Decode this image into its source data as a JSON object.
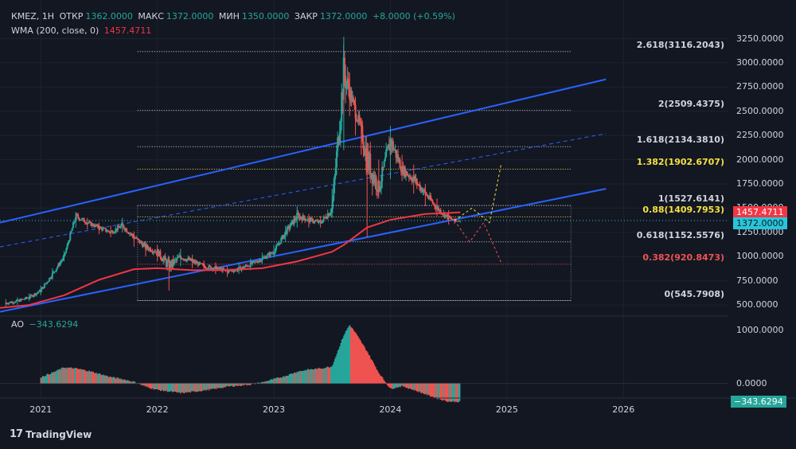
{
  "legend": {
    "symbol": "КМЕZ, 1Н",
    "open_label": "ОТКР",
    "open_value": "1362.0000",
    "high_label": "МАКС",
    "high_value": "1372.0000",
    "low_label": "МИН",
    "low_value": "1350.0000",
    "close_label": "ЗАКР",
    "close_value": "1372.0000",
    "change": "+8.0000 (+0.59%)",
    "wma_label": "WMA (200, close, 0)",
    "wma_value": "1457.4711",
    "ao_label": "AO",
    "ao_value": "−343.6294"
  },
  "colors": {
    "background": "#131722",
    "up": "#26a69a",
    "down": "#ef5350",
    "wma": "#f23645",
    "channel": "#2962ff",
    "fib_white": "#d1d4dc",
    "fib_yellow": "#f5e143",
    "fib_red": "#ef5350",
    "price_tag": "#26c6da",
    "wma_tag": "#f23645",
    "ao_tag": "#26a69a"
  },
  "price_axis": {
    "labels": [
      "3250.0000",
      "3000.0000",
      "2750.0000",
      "2500.0000",
      "2250.0000",
      "2000.0000",
      "1750.0000",
      "1500.0000",
      "1250.0000",
      "1000.0000",
      "750.0000",
      "500.0000"
    ],
    "values": [
      3250,
      3000,
      2750,
      2500,
      2250,
      2000,
      1750,
      1500,
      1250,
      1000,
      750,
      500
    ],
    "ylim": [
      460,
      3320
    ],
    "wma_tag": "1457.4711",
    "wma_tag_value": 1457.4711,
    "price_tag": "1372.0000",
    "price_tag_value": 1372
  },
  "fib_levels": [
    {
      "label": "2.618(3116.2043)",
      "value": 3116.2043,
      "color": "white"
    },
    {
      "label": "2(2509.4375)",
      "value": 2509.4375,
      "color": "white"
    },
    {
      "label": "1.618(2134.3810)",
      "value": 2134.381,
      "color": "white"
    },
    {
      "label": "1.382(1902.6707)",
      "value": 1902.6707,
      "color": "yellow"
    },
    {
      "label": "1(1527.6141)",
      "value": 1527.6141,
      "color": "white"
    },
    {
      "label": "0.88(1409.7953)",
      "value": 1409.7953,
      "color": "yellow"
    },
    {
      "label": "0.618(1152.5576)",
      "value": 1152.5576,
      "color": "white"
    },
    {
      "label": "0.382(920.8473)",
      "value": 920.8473,
      "color": "red"
    },
    {
      "label": "0(545.7908)",
      "value": 545.7908,
      "color": "white"
    }
  ],
  "ao_axis": {
    "labels": [
      "1000.0000",
      "0.0000"
    ],
    "values": [
      1000,
      0
    ],
    "ylim": [
      -200,
      1100
    ],
    "tag": "−343.6294",
    "tag_value": -343.6294
  },
  "time_axis": {
    "labels": [
      "2021",
      "2022",
      "2023",
      "2024",
      "2025",
      "2026"
    ],
    "values": [
      2021,
      2022,
      2023,
      2024,
      2025,
      2026
    ],
    "xlim": [
      2020.65,
      2026.9
    ]
  },
  "chart_data": {
    "type": "candlestick",
    "title": "",
    "xlabel": "",
    "ylabel": "",
    "x": [
      2020.7,
      2020.8,
      2020.9,
      2021.0,
      2021.1,
      2021.2,
      2021.3,
      2021.4,
      2021.5,
      2021.6,
      2021.7,
      2021.8,
      2021.9,
      2022.0,
      2022.1,
      2022.2,
      2022.3,
      2022.4,
      2022.5,
      2022.6,
      2022.7,
      2022.8,
      2022.9,
      2023.0,
      2023.1,
      2023.2,
      2023.3,
      2023.4,
      2023.5,
      2023.6,
      2023.65,
      2023.7,
      2023.75,
      2023.8,
      2023.9,
      2024.0,
      2024.1,
      2024.2,
      2024.3,
      2024.4,
      2024.5,
      2024.55,
      2024.6
    ],
    "close": [
      520,
      540,
      580,
      650,
      820,
      1000,
      1420,
      1350,
      1300,
      1250,
      1320,
      1200,
      1100,
      1050,
      900,
      1000,
      950,
      900,
      880,
      850,
      870,
      920,
      980,
      1050,
      1250,
      1420,
      1380,
      1350,
      1500,
      2900,
      2700,
      2500,
      2300,
      2000,
      1700,
      2200,
      1900,
      1800,
      1650,
      1500,
      1400,
      1370,
      1372
    ],
    "high": [
      560,
      580,
      620,
      700,
      880,
      1060,
      1460,
      1400,
      1350,
      1320,
      1400,
      1260,
      1160,
      1120,
      980,
      1080,
      1020,
      960,
      940,
      900,
      940,
      980,
      1040,
      1120,
      1320,
      1520,
      1440,
      1420,
      1700,
      3270,
      2900,
      2650,
      2420,
      2150,
      2000,
      2350,
      2050,
      1950,
      1750,
      1600,
      1480,
      1400,
      1372
    ],
    "low": [
      480,
      500,
      540,
      600,
      760,
      950,
      1300,
      1280,
      1230,
      1200,
      1250,
      1100,
      1000,
      950,
      650,
      900,
      880,
      850,
      820,
      790,
      820,
      860,
      920,
      990,
      1150,
      1300,
      1300,
      1300,
      1400,
      2100,
      2450,
      2250,
      2050,
      1200,
      1600,
      1800,
      1780,
      1650,
      1520,
      1420,
      1330,
      1340,
      1350
    ],
    "wma": {
      "name": "WMA (200, close, 0)",
      "x": [
        2020.65,
        2020.9,
        2021.2,
        2021.5,
        2021.8,
        2022.0,
        2022.3,
        2022.6,
        2022.9,
        2023.2,
        2023.5,
        2023.6,
        2023.8,
        2024.0,
        2024.3,
        2024.5,
        2024.6
      ],
      "values": [
        470,
        500,
        600,
        760,
        870,
        880,
        860,
        860,
        880,
        950,
        1050,
        1120,
        1300,
        1380,
        1440,
        1450,
        1457
      ]
    },
    "channel": {
      "upper": {
        "x": [
          2020.65,
          2025.85
        ],
        "values": [
          1350,
          2830
        ]
      },
      "middle": {
        "x": [
          2020.65,
          2025.85
        ],
        "values": [
          1100,
          2270
        ]
      },
      "lower": {
        "x": [
          2020.65,
          2025.85
        ],
        "values": [
          430,
          1700
        ]
      }
    },
    "projection_yellow": {
      "x": [
        2024.55,
        2024.7,
        2024.85,
        2024.95
      ],
      "values": [
        1372,
        1500,
        1350,
        1950
      ]
    },
    "projection_red": {
      "x": [
        2024.55,
        2024.68,
        2024.8,
        2024.95
      ],
      "values": [
        1372,
        1150,
        1350,
        940
      ]
    },
    "ao": {
      "name": "AO",
      "x": [
        2021.0,
        2021.1,
        2021.2,
        2021.3,
        2021.4,
        2021.5,
        2021.6,
        2021.7,
        2021.8,
        2021.9,
        2022.0,
        2022.1,
        2022.2,
        2022.3,
        2022.4,
        2022.5,
        2022.6,
        2022.7,
        2022.8,
        2022.9,
        2023.0,
        2023.1,
        2023.2,
        2023.3,
        2023.4,
        2023.5,
        2023.6,
        2023.65,
        2023.7,
        2023.8,
        2023.9,
        2024.0,
        2024.1,
        2024.2,
        2024.3,
        2024.4,
        2024.5,
        2024.6
      ],
      "values": [
        120,
        200,
        300,
        280,
        240,
        180,
        120,
        80,
        30,
        -60,
        -120,
        -150,
        -180,
        -160,
        -130,
        -100,
        -60,
        -40,
        -20,
        20,
        80,
        140,
        220,
        260,
        280,
        320,
        900,
        1100,
        950,
        600,
        200,
        -100,
        -50,
        -120,
        -200,
        -280,
        -340,
        -343.6294
      ]
    }
  }
}
